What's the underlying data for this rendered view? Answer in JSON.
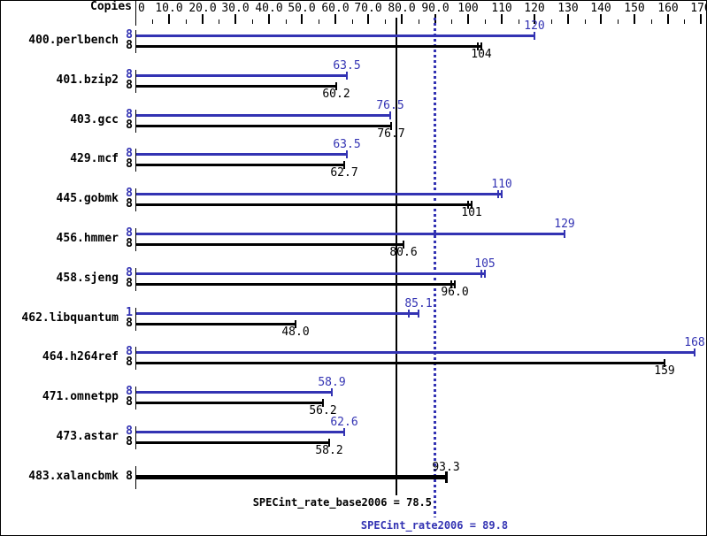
{
  "colors": {
    "peak": "#3333b3",
    "base": "#000000",
    "background": "#ffffff"
  },
  "chart_data": {
    "type": "bar",
    "orientation": "horizontal",
    "copies_header": "Copies",
    "axis": {
      "min": 0,
      "max": 170,
      "major_step": 10,
      "minor_step": 5,
      "tick_labels": [
        "0",
        "10.0",
        "20.0",
        "30.0",
        "40.0",
        "50.0",
        "60.0",
        "70.0",
        "80.0",
        "90.0",
        "100",
        "110",
        "120",
        "130",
        "140",
        "150",
        "160",
        "170"
      ]
    },
    "series_legend": {
      "peak_color": "#3333b3",
      "base_color": "#000000"
    },
    "benchmarks": [
      {
        "name": "400.perlbench",
        "bars": [
          {
            "series": "peak",
            "copies": "8",
            "value": 120,
            "label": "120",
            "extra_ticks": []
          },
          {
            "series": "base",
            "copies": "8",
            "value": 104,
            "label": "104",
            "extra_ticks": [
              103
            ]
          }
        ]
      },
      {
        "name": "401.bzip2",
        "bars": [
          {
            "series": "peak",
            "copies": "8",
            "value": 63.5,
            "label": "63.5",
            "extra_ticks": []
          },
          {
            "series": "base",
            "copies": "8",
            "value": 60.2,
            "label": "60.2",
            "extra_ticks": []
          }
        ]
      },
      {
        "name": "403.gcc",
        "bars": [
          {
            "series": "peak",
            "copies": "8",
            "value": 76.5,
            "label": "76.5",
            "extra_ticks": []
          },
          {
            "series": "base",
            "copies": "8",
            "value": 76.7,
            "label": "76.7",
            "extra_ticks": []
          }
        ]
      },
      {
        "name": "429.mcf",
        "bars": [
          {
            "series": "peak",
            "copies": "8",
            "value": 63.5,
            "label": "63.5",
            "extra_ticks": []
          },
          {
            "series": "base",
            "copies": "8",
            "value": 62.7,
            "label": "62.7",
            "extra_ticks": []
          }
        ]
      },
      {
        "name": "445.gobmk",
        "bars": [
          {
            "series": "peak",
            "copies": "8",
            "value": 110,
            "label": "110",
            "extra_ticks": [
              109
            ]
          },
          {
            "series": "base",
            "copies": "8",
            "value": 101,
            "label": "101",
            "extra_ticks": [
              100
            ]
          }
        ]
      },
      {
        "name": "456.hmmer",
        "bars": [
          {
            "series": "peak",
            "copies": "8",
            "value": 129,
            "label": "129",
            "extra_ticks": []
          },
          {
            "series": "base",
            "copies": "8",
            "value": 80.6,
            "label": "80.6",
            "extra_ticks": []
          }
        ]
      },
      {
        "name": "458.sjeng",
        "bars": [
          {
            "series": "peak",
            "copies": "8",
            "value": 105,
            "label": "105",
            "extra_ticks": [
              104
            ]
          },
          {
            "series": "base",
            "copies": "8",
            "value": 96.0,
            "label": "96.0",
            "extra_ticks": [
              95
            ]
          }
        ]
      },
      {
        "name": "462.libquantum",
        "bars": [
          {
            "series": "peak",
            "copies": "1",
            "value": 85.1,
            "label": "85.1",
            "extra_ticks": [
              82
            ]
          },
          {
            "series": "base",
            "copies": "8",
            "value": 48.0,
            "label": "48.0",
            "extra_ticks": []
          }
        ]
      },
      {
        "name": "464.h264ref",
        "bars": [
          {
            "series": "peak",
            "copies": "8",
            "value": 168,
            "label": "168",
            "extra_ticks": []
          },
          {
            "series": "base",
            "copies": "8",
            "value": 159,
            "label": "159",
            "extra_ticks": []
          }
        ]
      },
      {
        "name": "471.omnetpp",
        "bars": [
          {
            "series": "peak",
            "copies": "8",
            "value": 58.9,
            "label": "58.9",
            "extra_ticks": []
          },
          {
            "series": "base",
            "copies": "8",
            "value": 56.2,
            "label": "56.2",
            "extra_ticks": []
          }
        ]
      },
      {
        "name": "473.astar",
        "bars": [
          {
            "series": "peak",
            "copies": "8",
            "value": 62.6,
            "label": "62.6",
            "extra_ticks": []
          },
          {
            "series": "base",
            "copies": "8",
            "value": 58.2,
            "label": "58.2",
            "extra_ticks": []
          }
        ]
      },
      {
        "name": "483.xalancbmk",
        "bars": [
          {
            "series": "both",
            "copies": "8",
            "value": 93.3,
            "label": "93.3",
            "extra_ticks": [],
            "thick": true,
            "label_pos": "above"
          }
        ]
      }
    ],
    "reference_lines": [
      {
        "name": "SPECint_rate_base2006",
        "label": "SPECint_rate_base2006 = 78.5",
        "value": 78.5,
        "style": "solid",
        "color": "#000000"
      },
      {
        "name": "SPECint_rate2006",
        "label": "SPECint_rate2006 = 89.8",
        "value": 89.8,
        "style": "dotted",
        "color": "#3333b3"
      }
    ]
  }
}
